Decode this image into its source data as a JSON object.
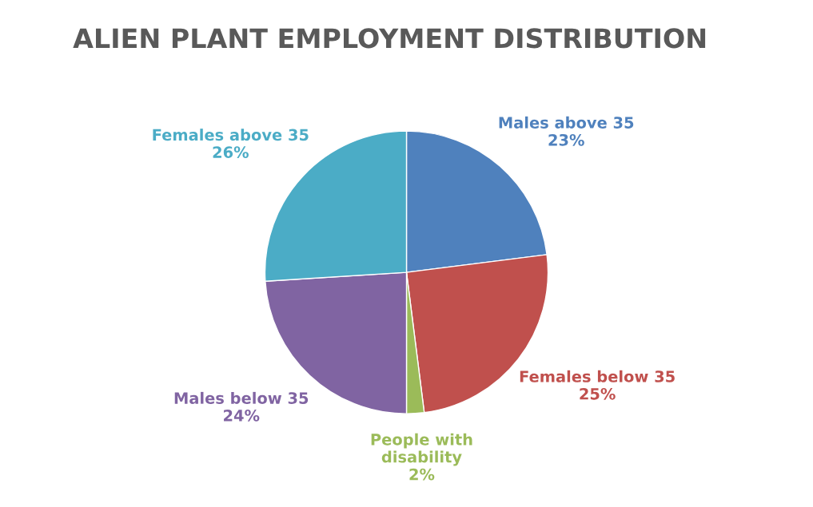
{
  "chart_data": {
    "type": "pie",
    "title": "ALIEN PLANT EMPLOYMENT DISTRIBUTION",
    "categories": [
      "Males above 35",
      "Females below 35",
      "People with disability",
      "Males below 35",
      "Females above 35"
    ],
    "values": [
      23,
      25,
      2,
      24,
      26
    ],
    "value_labels": [
      "23%",
      "25%",
      "2%",
      "24%",
      "26%"
    ],
    "colors": [
      "#4f81bd",
      "#c0504d",
      "#9bbb59",
      "#8064a2",
      "#4bacc6"
    ]
  }
}
